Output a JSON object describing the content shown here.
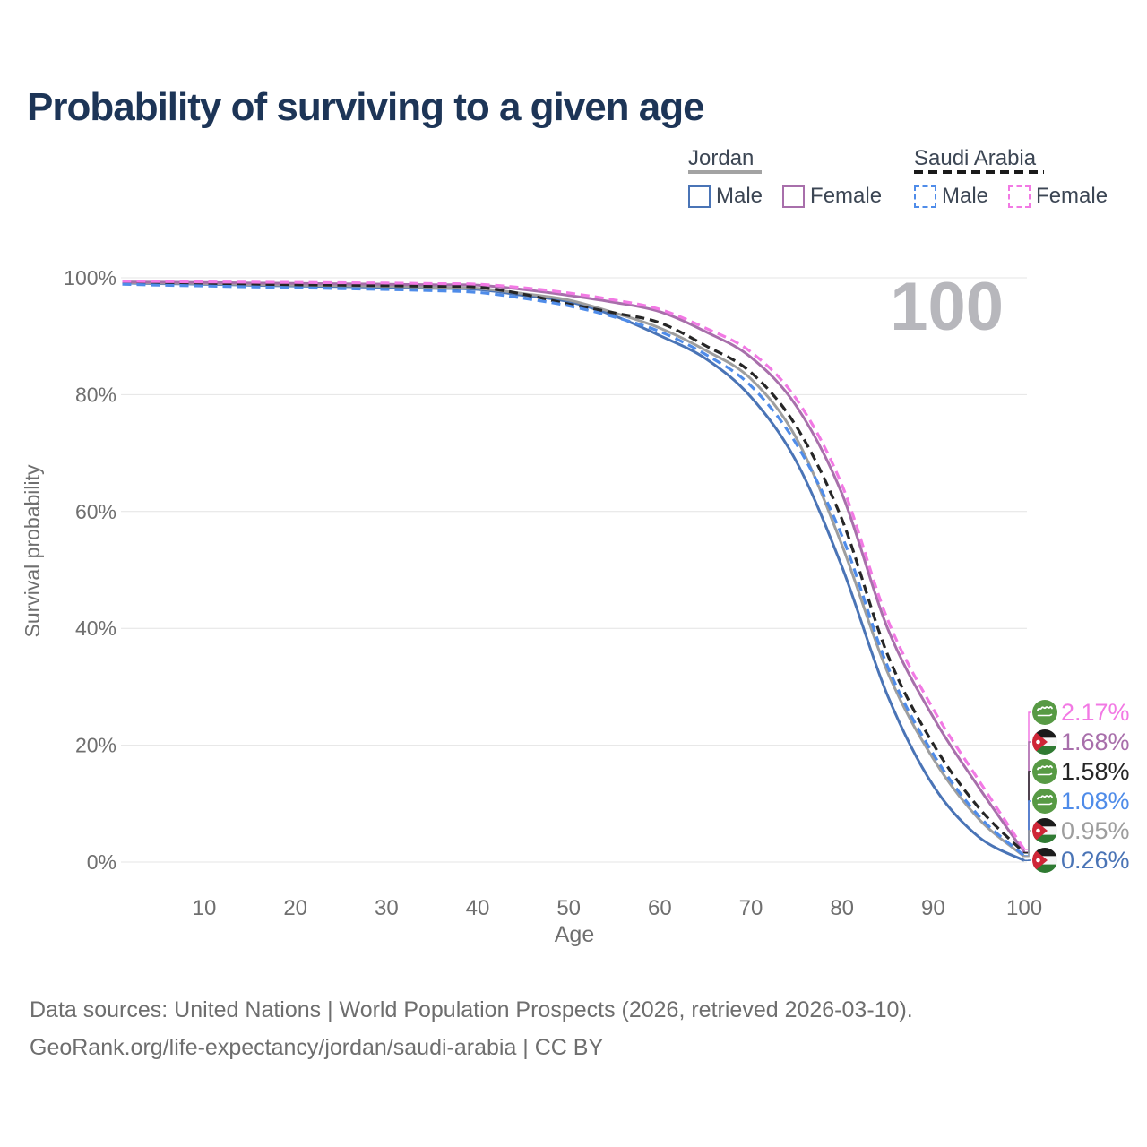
{
  "header": {
    "title": "Probability of surviving to a given age"
  },
  "legend": {
    "groups": [
      {
        "country": "Jordan",
        "underline": {
          "color": "#a3a3a3",
          "dashed": false,
          "width": 82
        },
        "items": [
          {
            "label": "Male",
            "color": "#4a74b6",
            "dashed": false
          },
          {
            "label": "Female",
            "color": "#a86fab",
            "dashed": false
          }
        ]
      },
      {
        "country": "Saudi Arabia",
        "underline": {
          "color": "#1a1a1a",
          "dashed": true,
          "width": 145
        },
        "items": [
          {
            "label": "Male",
            "color": "#4f8ce9",
            "dashed": true
          },
          {
            "label": "Female",
            "color": "#f279e4",
            "dashed": true
          }
        ]
      }
    ]
  },
  "chart_data": {
    "type": "line",
    "title": "Probability of surviving to a given age",
    "xlabel": "Age",
    "ylabel": "Survival probability",
    "xlim": [
      1,
      100
    ],
    "ylim": [
      0,
      100
    ],
    "grid": true,
    "legend_position": "top-right",
    "age_watermark": "100",
    "x_ticks": [
      {
        "value": 10,
        "label": "10"
      },
      {
        "value": 20,
        "label": "20"
      },
      {
        "value": 30,
        "label": "30"
      },
      {
        "value": 40,
        "label": "40"
      },
      {
        "value": 50,
        "label": "50"
      },
      {
        "value": 60,
        "label": "60"
      },
      {
        "value": 70,
        "label": "70"
      },
      {
        "value": 80,
        "label": "80"
      },
      {
        "value": 90,
        "label": "90"
      },
      {
        "value": 100,
        "label": "100"
      }
    ],
    "y_ticks": [
      {
        "value": 0,
        "label": "0%"
      },
      {
        "value": 20,
        "label": "20%"
      },
      {
        "value": 40,
        "label": "40%"
      },
      {
        "value": 60,
        "label": "60%"
      },
      {
        "value": 80,
        "label": "80%"
      },
      {
        "value": 100,
        "label": "100%"
      }
    ],
    "x": [
      1,
      5,
      10,
      15,
      20,
      25,
      30,
      35,
      40,
      45,
      50,
      55,
      60,
      65,
      70,
      75,
      80,
      85,
      90,
      95,
      100
    ],
    "series": [
      {
        "name": "Saudi Arabia Female",
        "country": "Saudi Arabia",
        "sex": "Female",
        "color": "#f279e4",
        "line_style": "dashed",
        "flag": "saudi-arabia",
        "end_label": "2.17%",
        "values": [
          99.4,
          99.35,
          99.3,
          99.25,
          99.2,
          99.15,
          99.1,
          99.0,
          98.9,
          98.3,
          97.4,
          96.2,
          94.6,
          91.4,
          87.3,
          79.2,
          64.5,
          41.5,
          26.2,
          14.0,
          2.17
        ]
      },
      {
        "name": "Jordan Female",
        "country": "Jordan",
        "sex": "Female",
        "color": "#a86fab",
        "line_style": "solid",
        "flag": "jordan",
        "end_label": "1.68%",
        "values": [
          99.3,
          99.25,
          99.2,
          99.1,
          99.05,
          98.95,
          98.9,
          98.8,
          98.75,
          98.0,
          97.0,
          95.8,
          94.2,
          90.8,
          86.4,
          78.0,
          63.0,
          40.0,
          24.8,
          12.8,
          1.68
        ]
      },
      {
        "name": "Saudi Arabia",
        "country": "Saudi Arabia",
        "sex": "Both",
        "color": "#262626",
        "line_style": "dashed",
        "flag": "saudi-arabia",
        "end_label": "1.58%",
        "values": [
          99.2,
          99.1,
          99.0,
          98.9,
          98.8,
          98.75,
          98.65,
          98.55,
          98.4,
          97.2,
          95.5,
          94.0,
          92.3,
          88.4,
          83.8,
          74.5,
          58.6,
          35.5,
          20.2,
          9.3,
          1.58
        ]
      },
      {
        "name": "Saudi Arabia Male",
        "country": "Saudi Arabia",
        "sex": "Male",
        "color": "#4f8ce9",
        "line_style": "dashed",
        "flag": "saudi-arabia",
        "end_label": "1.08%",
        "values": [
          98.9,
          98.75,
          98.6,
          98.45,
          98.3,
          98.15,
          98.0,
          97.8,
          97.5,
          96.5,
          95.2,
          93.3,
          90.8,
          86.9,
          81.5,
          71.5,
          55.8,
          33.5,
          18.5,
          7.9,
          1.08
        ]
      },
      {
        "name": "Jordan",
        "country": "Jordan",
        "sex": "Both",
        "color": "#9e9e9e",
        "line_style": "solid",
        "flag": "jordan",
        "end_label": "0.95%",
        "values": [
          99.2,
          99.1,
          99.0,
          98.85,
          98.75,
          98.65,
          98.55,
          98.4,
          98.2,
          97.3,
          96.2,
          94.0,
          91.4,
          87.6,
          82.7,
          72.5,
          54.2,
          32.5,
          17.7,
          7.4,
          0.95
        ]
      },
      {
        "name": "Jordan Male",
        "country": "Jordan",
        "sex": "Male",
        "color": "#4a74b6",
        "line_style": "solid",
        "flag": "jordan",
        "end_label": "0.26%",
        "values": [
          99.1,
          99.0,
          98.9,
          98.75,
          98.6,
          98.5,
          98.35,
          98.2,
          98.0,
          97.0,
          95.9,
          93.5,
          90.1,
          86.2,
          79.6,
          68.5,
          50.5,
          28.5,
          13.1,
          4.3,
          0.26
        ]
      }
    ]
  },
  "footer": {
    "line1": "Data sources: United Nations | World Population Prospects (2026, retrieved 2026-03-10).",
    "line2": "GeoRank.org/life-expectancy/jordan/saudi-arabia | CC BY"
  },
  "colors": {
    "title": "#1d3557",
    "axis_text": "#6f6f6f",
    "gridline": "#e4e4e4",
    "watermark": "#b7b7bc",
    "saudi_green": "#579a44",
    "jordan_black": "#1b1b1b",
    "jordan_white": "#f5f5f5",
    "jordan_green": "#2f7a32",
    "jordan_red": "#cf2637"
  }
}
